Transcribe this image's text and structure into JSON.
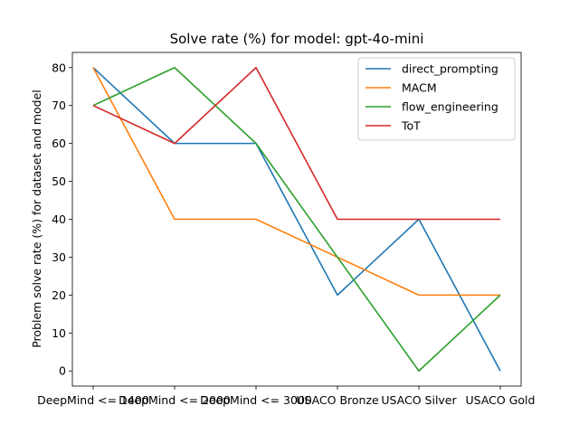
{
  "chart_data": {
    "type": "line",
    "title": "Solve rate (%) for model: gpt-4o-mini",
    "xlabel": "",
    "ylabel": "Problem solve rate (%) for dataset and model",
    "categories": [
      "DeepMind <= 1400",
      "DeepMind <= 2000",
      "DeepMind <= 3000",
      "USACO Bronze",
      "USACO Silver",
      "USACO Gold"
    ],
    "ylim": [
      -4,
      84
    ],
    "yticks": [
      0,
      10,
      20,
      30,
      40,
      50,
      60,
      70,
      80
    ],
    "grid": false,
    "legend_position": "upper-right",
    "series": [
      {
        "name": "direct_prompting",
        "color": "#1f77b4",
        "values": [
          80,
          60,
          60,
          20,
          40,
          0
        ]
      },
      {
        "name": "MACM",
        "color": "#ff7f0e",
        "values": [
          80,
          40,
          40,
          30,
          20,
          20
        ]
      },
      {
        "name": "flow_engineering",
        "color": "#2ca02c",
        "values": [
          70,
          80,
          60,
          30,
          0,
          20
        ]
      },
      {
        "name": "ToT",
        "color": "#d62728",
        "values": [
          70,
          60,
          80,
          40,
          40,
          40
        ]
      }
    ]
  }
}
